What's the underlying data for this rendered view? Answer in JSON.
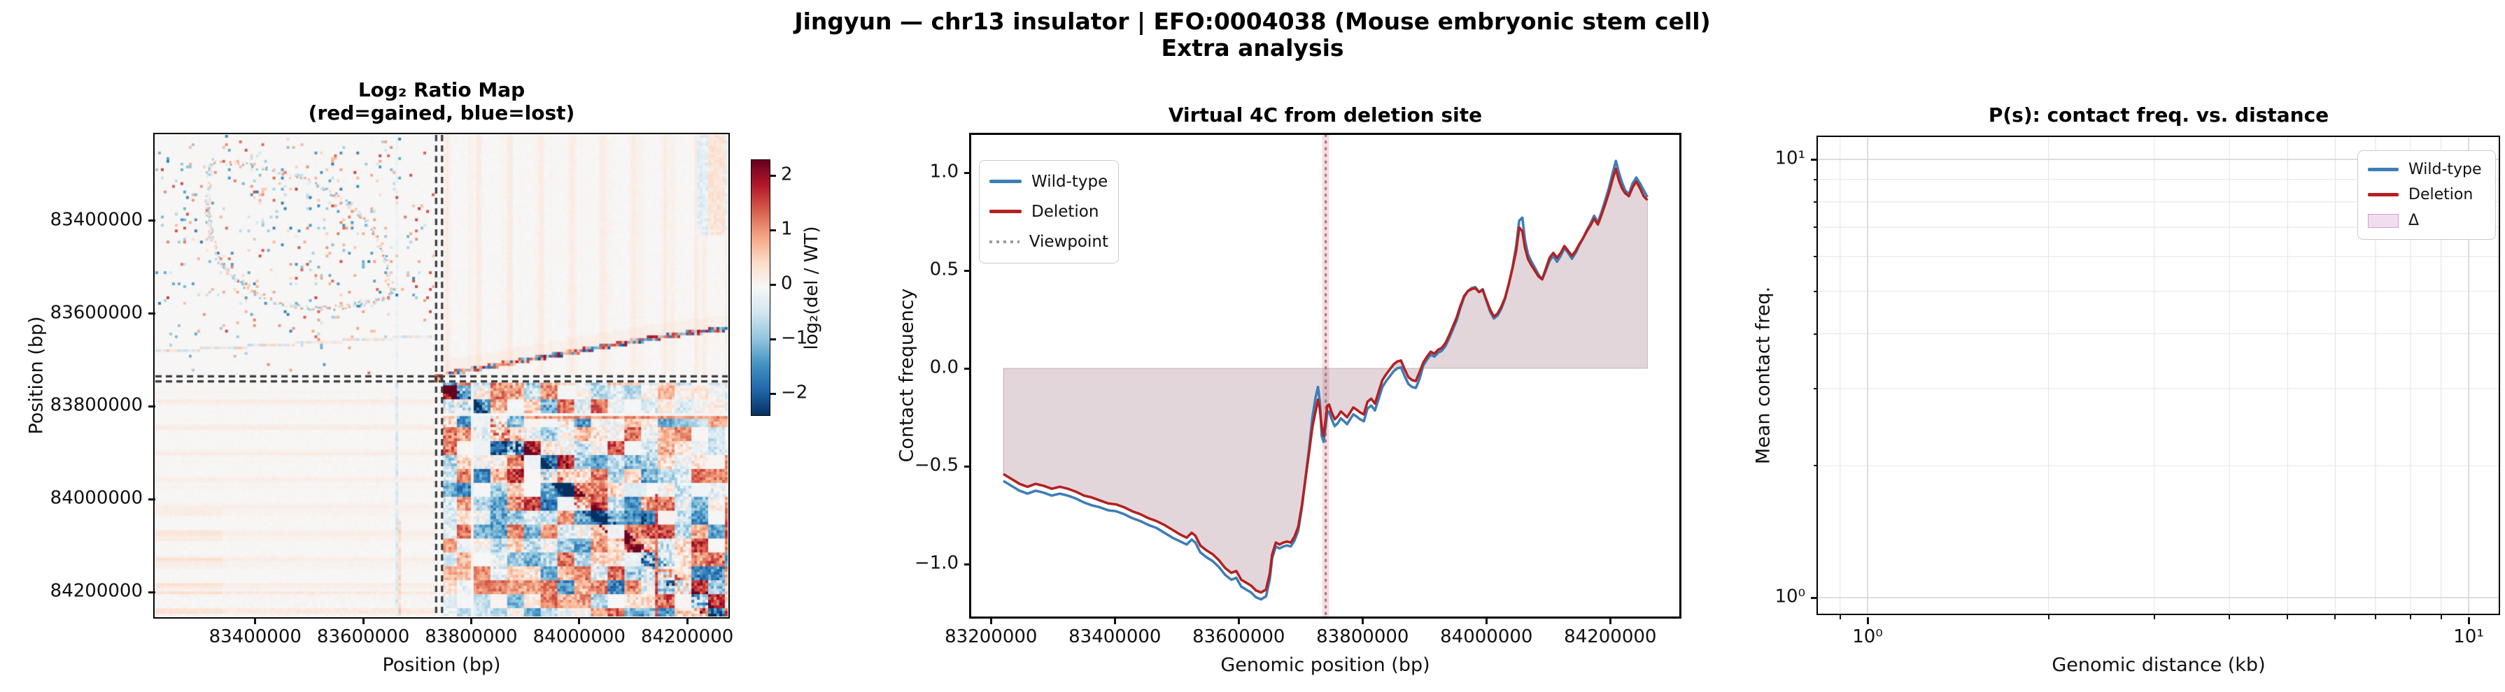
{
  "figure": {
    "suptitle_line1": "Jingyun — chr13 insulator  |  EFO:0004038 (Mouse embryonic stem cell)",
    "suptitle_line2": "Extra analysis",
    "background": "#ffffff"
  },
  "colors": {
    "wild_type": "#3d7eb8",
    "deletion": "#b22222",
    "viewpoint_line": "#8a8a8a",
    "viewpoint_band": "#ffb3c0",
    "delta_fill": "rgba(144,95,116,0.26)",
    "heat_positive": "#b2182b",
    "heat_negative": "#2166ac",
    "grid_minor": "#e7e7e7",
    "grid_major": "#d8d8d8"
  },
  "panels": {
    "ratio_map": {
      "title_line1": "Log₂ Ratio Map",
      "title_line2": "(red=gained, blue=lost)",
      "xlabel": "Position (bp)",
      "ylabel": "Position (bp)",
      "xticks": [
        {
          "label": "83400000",
          "bp": 83400000
        },
        {
          "label": "83600000",
          "bp": 83600000
        },
        {
          "label": "83800000",
          "bp": 83800000
        },
        {
          "label": "84000000",
          "bp": 84000000
        },
        {
          "label": "84200000",
          "bp": 84200000
        }
      ],
      "yticks": [
        {
          "label": "83400000",
          "bp": 83400000
        },
        {
          "label": "83600000",
          "bp": 83600000
        },
        {
          "label": "83800000",
          "bp": 83800000
        },
        {
          "label": "84000000",
          "bp": 84000000
        },
        {
          "label": "84200000",
          "bp": 84200000
        }
      ],
      "colorbar": {
        "label": "log₂(del / WT)",
        "ticks": [
          {
            "label": "2",
            "value": 2
          },
          {
            "label": "1",
            "value": 1
          },
          {
            "label": "0",
            "value": 0
          },
          {
            "label": "−1",
            "value": -1
          },
          {
            "label": "−2",
            "value": -2
          }
        ]
      }
    },
    "virtual4c": {
      "title": "Virtual 4C from deletion site",
      "xlabel": "Genomic position (bp)",
      "ylabel": "Contact frequency",
      "xticks": [
        {
          "label": "83200000",
          "bp": 83200000
        },
        {
          "label": "83400000",
          "bp": 83400000
        },
        {
          "label": "83600000",
          "bp": 83600000
        },
        {
          "label": "83800000",
          "bp": 83800000
        },
        {
          "label": "84000000",
          "bp": 84000000
        },
        {
          "label": "84200000",
          "bp": 84200000
        }
      ],
      "yticks": [
        {
          "label": "1.0",
          "value": 1.0
        },
        {
          "label": "0.5",
          "value": 0.5
        },
        {
          "label": "0.0",
          "value": 0.0
        },
        {
          "label": "−0.5",
          "value": -0.5
        },
        {
          "label": "−1.0",
          "value": -1.0
        }
      ],
      "legend": [
        {
          "label": "Wild-type",
          "style": "line-blue"
        },
        {
          "label": "Deletion",
          "style": "line-red"
        },
        {
          "label": "Viewpoint",
          "style": "dotted-gray"
        }
      ]
    },
    "ps": {
      "title": "P(s): contact freq. vs. distance",
      "xlabel": "Genomic distance (kb)",
      "ylabel": "Mean contact freq.",
      "xticks": [
        {
          "label": "10⁰",
          "kb": 1
        },
        {
          "label": "10¹",
          "kb": 10
        }
      ],
      "yticks": [
        {
          "label": "10¹",
          "value": 10
        },
        {
          "label": "10⁰",
          "value": 1
        }
      ],
      "legend": [
        {
          "label": "Wild-type",
          "style": "line-blue"
        },
        {
          "label": "Deletion",
          "style": "line-red"
        },
        {
          "label": "Δ",
          "style": "patch-pink"
        }
      ]
    }
  },
  "chart_data": [
    {
      "id": "ratio_map",
      "type": "heatmap",
      "title": "Log₂ Ratio Map (red=gained, blue=lost)",
      "xlabel": "Position (bp)",
      "ylabel": "Position (bp)",
      "x_range_bp": [
        83215000,
        84275000
      ],
      "y_range_bp": [
        83215000,
        84252000
      ],
      "deletion_bp": [
        83735000,
        83746000
      ],
      "color_scale": {
        "cmap": "RdBu_r",
        "vmin": -2.35,
        "vmax": 2.35,
        "label": "log₂(del / WT)"
      },
      "pattern_seed": 1337,
      "visible_features": [
        "white background with sparse red/blue speckle clusters in upper-left quadrant",
        "irregular speckled loop outline in upper-left quadrant",
        "blue boundary streak near 83,662,000 bp (vertical and sloped horizontal mirror)",
        "double dashed deletion lines crossing at ~83,740,000 bp with red focal dot",
        "jagged red/blue stripe running right of the deletion cross",
        "strong blocky red/blue reorganization texture in lower-right quadrant with white saturated holes"
      ]
    },
    {
      "id": "virtual4c",
      "type": "line",
      "title": "Virtual 4C from deletion site",
      "xlabel": "Genomic position (bp)",
      "ylabel": "Contact frequency",
      "x_unit": "bp",
      "xlim": [
        83168000,
        84312000
      ],
      "ylim": [
        -1.268,
        1.193
      ],
      "viewpoint_bp": 83740500,
      "deletion_span_bp": [
        83735000,
        83746000
      ],
      "fill": "area between Deletion curve and y=0",
      "series_format": [
        "x_bp",
        "wild_type",
        "deletion"
      ],
      "points": [
        [
          83220000,
          -0.575,
          -0.54
        ],
        [
          83233000,
          -0.6,
          -0.565
        ],
        [
          83246000,
          -0.625,
          -0.59
        ],
        [
          83259000,
          -0.64,
          -0.605
        ],
        [
          83272000,
          -0.625,
          -0.59
        ],
        [
          83285000,
          -0.635,
          -0.6
        ],
        [
          83298000,
          -0.65,
          -0.615
        ],
        [
          83311000,
          -0.64,
          -0.605
        ],
        [
          83324000,
          -0.65,
          -0.615
        ],
        [
          83337000,
          -0.665,
          -0.63
        ],
        [
          83350000,
          -0.685,
          -0.65
        ],
        [
          83363000,
          -0.7,
          -0.66
        ],
        [
          83376000,
          -0.71,
          -0.675
        ],
        [
          83389000,
          -0.725,
          -0.69
        ],
        [
          83402000,
          -0.73,
          -0.695
        ],
        [
          83415000,
          -0.745,
          -0.71
        ],
        [
          83428000,
          -0.765,
          -0.73
        ],
        [
          83441000,
          -0.78,
          -0.745
        ],
        [
          83454000,
          -0.8,
          -0.765
        ],
        [
          83467000,
          -0.815,
          -0.78
        ],
        [
          83480000,
          -0.84,
          -0.8
        ],
        [
          83493000,
          -0.865,
          -0.825
        ],
        [
          83506000,
          -0.885,
          -0.85
        ],
        [
          83516000,
          -0.9,
          -0.865
        ],
        [
          83524000,
          -0.875,
          -0.84
        ],
        [
          83530000,
          -0.89,
          -0.855
        ],
        [
          83538000,
          -0.94,
          -0.905
        ],
        [
          83548000,
          -0.965,
          -0.93
        ],
        [
          83558000,
          -0.985,
          -0.95
        ],
        [
          83568000,
          -1.015,
          -0.98
        ],
        [
          83578000,
          -1.055,
          -1.02
        ],
        [
          83588000,
          -1.08,
          -1.045
        ],
        [
          83596000,
          -1.07,
          -1.035
        ],
        [
          83604000,
          -1.115,
          -1.08
        ],
        [
          83612000,
          -1.13,
          -1.095
        ],
        [
          83620000,
          -1.145,
          -1.11
        ],
        [
          83628000,
          -1.17,
          -1.135
        ],
        [
          83636000,
          -1.18,
          -1.145
        ],
        [
          83644000,
          -1.165,
          -1.13
        ],
        [
          83650000,
          -1.08,
          -1.05
        ],
        [
          83654000,
          -0.97,
          -0.95
        ],
        [
          83660000,
          -0.91,
          -0.89
        ],
        [
          83666000,
          -0.92,
          -0.9
        ],
        [
          83672000,
          -0.91,
          -0.89
        ],
        [
          83678000,
          -0.905,
          -0.885
        ],
        [
          83684000,
          -0.91,
          -0.89
        ],
        [
          83690000,
          -0.88,
          -0.86
        ],
        [
          83696000,
          -0.83,
          -0.81
        ],
        [
          83702000,
          -0.71,
          -0.7
        ],
        [
          83708000,
          -0.555,
          -0.56
        ],
        [
          83714000,
          -0.4,
          -0.42
        ],
        [
          83719000,
          -0.25,
          -0.3
        ],
        [
          83724000,
          -0.15,
          -0.22
        ],
        [
          83728000,
          -0.095,
          -0.16
        ],
        [
          83731000,
          -0.17,
          -0.21
        ],
        [
          83734000,
          -0.345,
          -0.3
        ],
        [
          83737000,
          -0.375,
          -0.345
        ],
        [
          83740000,
          -0.31,
          -0.27
        ],
        [
          83743000,
          -0.225,
          -0.19
        ],
        [
          83746000,
          -0.22,
          -0.185
        ],
        [
          83750000,
          -0.26,
          -0.225
        ],
        [
          83755000,
          -0.295,
          -0.26
        ],
        [
          83760000,
          -0.28,
          -0.245
        ],
        [
          83765000,
          -0.255,
          -0.22
        ],
        [
          83770000,
          -0.27,
          -0.235
        ],
        [
          83775000,
          -0.285,
          -0.25
        ],
        [
          83780000,
          -0.26,
          -0.225
        ],
        [
          83785000,
          -0.235,
          -0.2
        ],
        [
          83790000,
          -0.245,
          -0.21
        ],
        [
          83796000,
          -0.26,
          -0.225
        ],
        [
          83802000,
          -0.27,
          -0.235
        ],
        [
          83808000,
          -0.205,
          -0.17
        ],
        [
          83814000,
          -0.19,
          -0.155
        ],
        [
          83820000,
          -0.215,
          -0.18
        ],
        [
          83826000,
          -0.155,
          -0.12
        ],
        [
          83832000,
          -0.095,
          -0.06
        ],
        [
          83838000,
          -0.065,
          -0.03
        ],
        [
          83844000,
          -0.04,
          -0.005
        ],
        [
          83850000,
          -0.015,
          0.02
        ],
        [
          83856000,
          0.0,
          0.035
        ],
        [
          83862000,
          0.005,
          0.04
        ],
        [
          83868000,
          -0.04,
          -0.005
        ],
        [
          83874000,
          -0.08,
          -0.045
        ],
        [
          83880000,
          -0.095,
          -0.06
        ],
        [
          83886000,
          -0.1,
          -0.065
        ],
        [
          83892000,
          -0.055,
          -0.02
        ],
        [
          83898000,
          0.015,
          0.03
        ],
        [
          83904000,
          0.045,
          0.06
        ],
        [
          83910000,
          0.07,
          0.085
        ],
        [
          83916000,
          0.06,
          0.075
        ],
        [
          83922000,
          0.08,
          0.095
        ],
        [
          83928000,
          0.09,
          0.105
        ],
        [
          83934000,
          0.115,
          0.13
        ],
        [
          83940000,
          0.155,
          0.17
        ],
        [
          83946000,
          0.2,
          0.215
        ],
        [
          83952000,
          0.245,
          0.26
        ],
        [
          83958000,
          0.31,
          0.32
        ],
        [
          83964000,
          0.365,
          0.37
        ],
        [
          83970000,
          0.395,
          0.395
        ],
        [
          83976000,
          0.41,
          0.405
        ],
        [
          83982000,
          0.415,
          0.41
        ],
        [
          83988000,
          0.39,
          0.39
        ],
        [
          83994000,
          0.405,
          0.4
        ],
        [
          84000000,
          0.345,
          0.35
        ],
        [
          84006000,
          0.29,
          0.3
        ],
        [
          84012000,
          0.255,
          0.265
        ],
        [
          84018000,
          0.27,
          0.28
        ],
        [
          84024000,
          0.305,
          0.315
        ],
        [
          84030000,
          0.355,
          0.36
        ],
        [
          84036000,
          0.43,
          0.43
        ],
        [
          84042000,
          0.515,
          0.51
        ],
        [
          84048000,
          0.625,
          0.6
        ],
        [
          84053000,
          0.755,
          0.72
        ],
        [
          84058000,
          0.77,
          0.7
        ],
        [
          84062000,
          0.66,
          0.62
        ],
        [
          84067000,
          0.585,
          0.56
        ],
        [
          84072000,
          0.55,
          0.53
        ],
        [
          84078000,
          0.515,
          0.5
        ],
        [
          84084000,
          0.48,
          0.47
        ],
        [
          84090000,
          0.455,
          0.455
        ],
        [
          84096000,
          0.5,
          0.51
        ],
        [
          84102000,
          0.55,
          0.565
        ],
        [
          84108000,
          0.575,
          0.59
        ],
        [
          84114000,
          0.545,
          0.565
        ],
        [
          84120000,
          0.575,
          0.59
        ],
        [
          84126000,
          0.615,
          0.625
        ],
        [
          84132000,
          0.59,
          0.6
        ],
        [
          84138000,
          0.56,
          0.575
        ],
        [
          84144000,
          0.59,
          0.6
        ],
        [
          84150000,
          0.63,
          0.635
        ],
        [
          84156000,
          0.665,
          0.665
        ],
        [
          84162000,
          0.705,
          0.7
        ],
        [
          84168000,
          0.74,
          0.73
        ],
        [
          84174000,
          0.78,
          0.765
        ],
        [
          84180000,
          0.745,
          0.735
        ],
        [
          84186000,
          0.8,
          0.785
        ],
        [
          84192000,
          0.86,
          0.84
        ],
        [
          84198000,
          0.925,
          0.9
        ],
        [
          84204000,
          1.0,
          0.97
        ],
        [
          84209000,
          1.06,
          1.02
        ],
        [
          84214000,
          1.0,
          0.96
        ],
        [
          84219000,
          0.95,
          0.92
        ],
        [
          84224000,
          0.91,
          0.895
        ],
        [
          84230000,
          0.89,
          0.88
        ],
        [
          84236000,
          0.945,
          0.925
        ],
        [
          84242000,
          0.975,
          0.955
        ],
        [
          84248000,
          0.945,
          0.92
        ],
        [
          84254000,
          0.91,
          0.88
        ],
        [
          84260000,
          0.875,
          0.86
        ]
      ]
    },
    {
      "id": "ps",
      "type": "line",
      "title": "P(s): contact freq. vs. distance",
      "xlabel": "Genomic distance (kb)",
      "ylabel": "Mean contact freq.",
      "x_scale": "log",
      "y_scale": "log",
      "xlim_kb": [
        0.83,
        11.2
      ],
      "ylim": [
        0.92,
        11.3
      ],
      "grid": "major and minor log grid visible",
      "legend_position": "upper right",
      "series": [
        {
          "name": "Wild-type",
          "points": []
        },
        {
          "name": "Deletion",
          "points": []
        }
      ],
      "note": "no curve is visible within the shown axis limits"
    }
  ]
}
